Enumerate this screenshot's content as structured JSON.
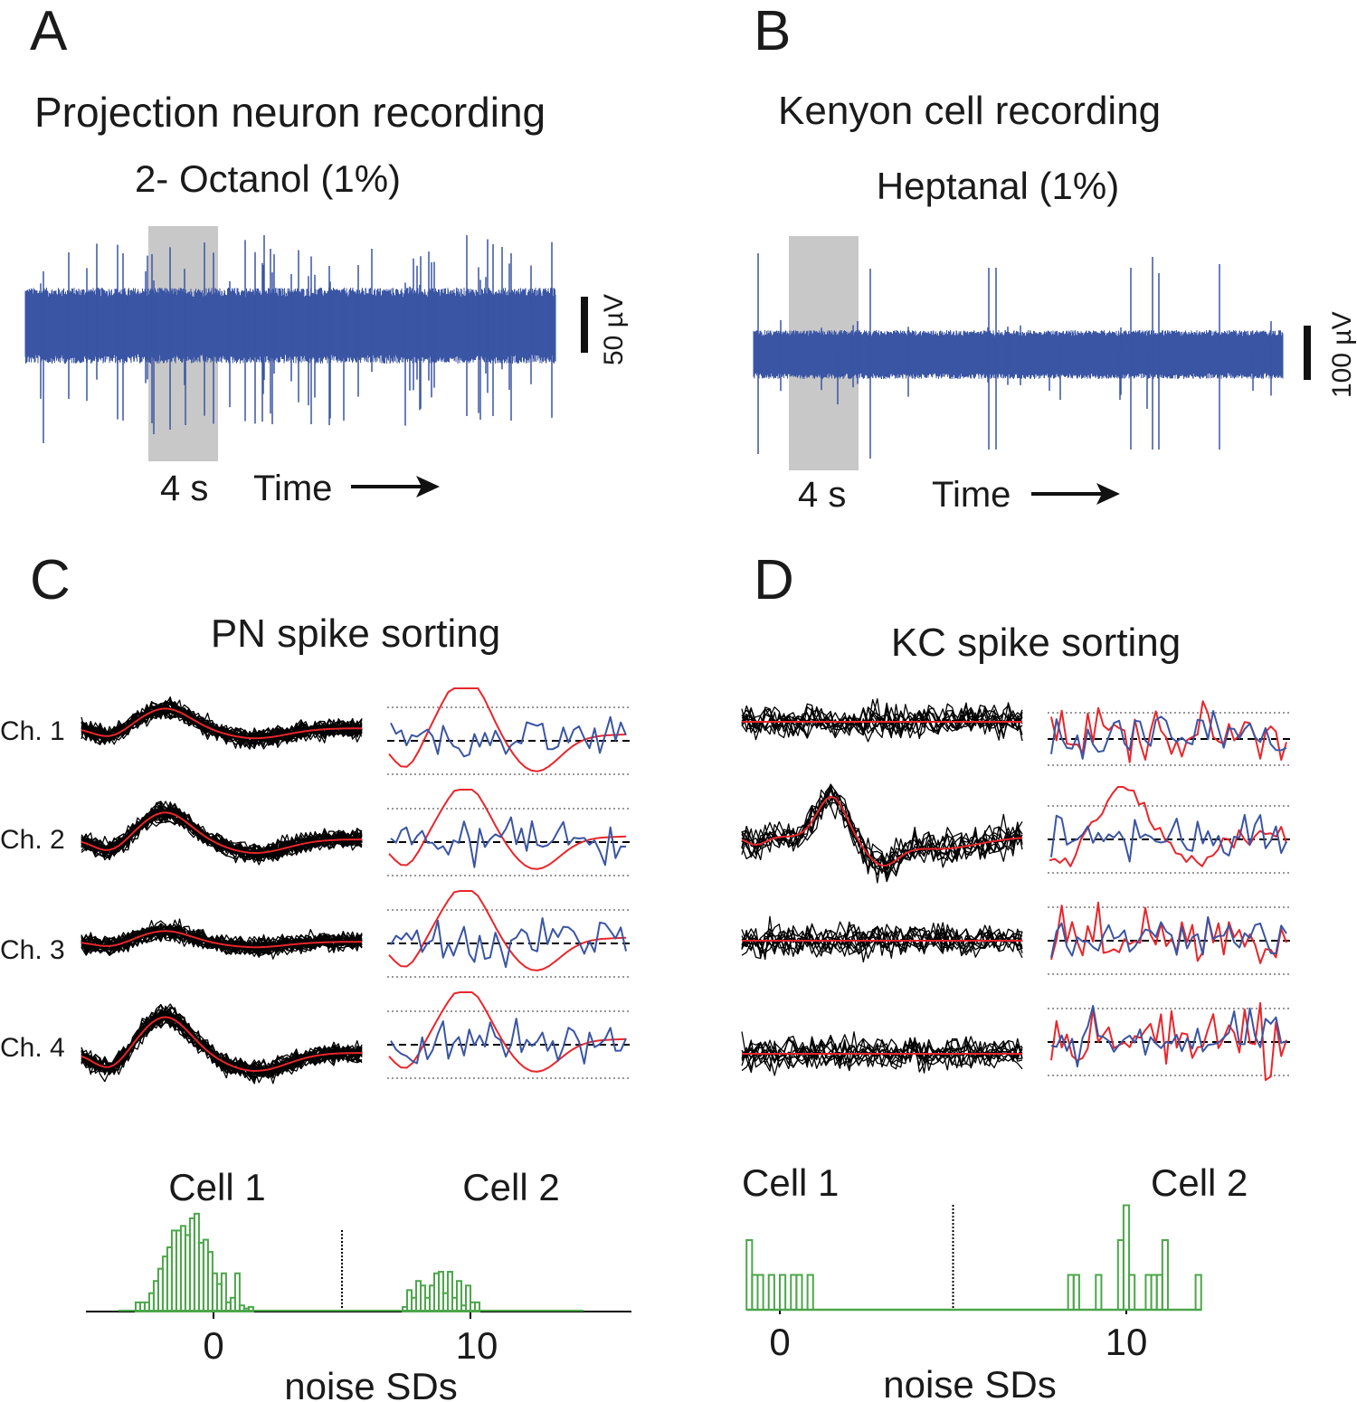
{
  "colors": {
    "trace": "#3a55a4",
    "mean": "#e8262b",
    "cell2": "#3a55a4",
    "hist": "#4ca64a",
    "stim": "#c8c8c8",
    "waveform": "#000000"
  },
  "panels": {
    "A": {
      "letter": "A",
      "title": "Projection neuron recording",
      "odor": "2- Octanol (1%)",
      "scale_label": "50 µV",
      "time_scale": "4 s",
      "time_label": "Time"
    },
    "B": {
      "letter": "B",
      "title": "Kenyon cell recording",
      "odor": "Heptanal (1%)",
      "scale_label": "100 µV",
      "time_scale": "4 s",
      "time_label": "Time"
    },
    "C": {
      "letter": "C",
      "title": "PN spike sorting",
      "channels": [
        "Ch. 1",
        "Ch. 2",
        "Ch. 3",
        "Ch. 4"
      ]
    },
    "D": {
      "letter": "D",
      "title": "KC spike sorting"
    }
  },
  "chart_data": [
    {
      "panel": "C",
      "type": "bar",
      "xlabel": "noise SDs",
      "xticks": [
        0,
        10
      ],
      "xtick_labels": [
        "0",
        "10"
      ],
      "xlim": [
        -5,
        16.2
      ],
      "threshold": 5,
      "cluster_labels": [
        "Cell 1",
        "Cell 2"
      ],
      "bin_width": 0.176,
      "clusters": [
        {
          "name": "Cell 1",
          "start": -3.03,
          "counts": [
            6,
            6,
            6,
            12,
            20,
            28,
            36,
            42,
            53,
            53,
            56,
            50,
            61,
            64,
            45,
            47,
            39,
            25,
            18,
            25,
            6,
            9,
            25,
            4,
            2,
            3
          ]
        },
        {
          "name": "Cell 2",
          "start": 7.36,
          "counts": [
            3,
            14,
            9,
            20,
            17,
            9,
            17,
            25,
            26,
            12,
            26,
            9,
            20,
            4,
            17,
            6,
            6
          ]
        }
      ]
    },
    {
      "panel": "D",
      "type": "bar",
      "xlabel": "noise SDs",
      "xticks": [
        0,
        10
      ],
      "xtick_labels": [
        "0",
        "10"
      ],
      "xlim": [
        -1,
        15
      ],
      "threshold": 5,
      "cluster_labels": [
        "Cell 1",
        "Cell 2"
      ],
      "bin_width": 0.16,
      "start": -0.96,
      "bins": [
        [
          0,
          2
        ],
        [
          1,
          1
        ],
        [
          2,
          1
        ],
        [
          4,
          1
        ],
        [
          6,
          1
        ],
        [
          8,
          1
        ],
        [
          9,
          1
        ],
        [
          11,
          1
        ],
        [
          58,
          1
        ],
        [
          59,
          1
        ],
        [
          63,
          1
        ],
        [
          67,
          2
        ],
        [
          68,
          3
        ],
        [
          69,
          1
        ],
        [
          72,
          1
        ],
        [
          73,
          1
        ],
        [
          74,
          1
        ],
        [
          75,
          2
        ],
        [
          81,
          1
        ]
      ]
    }
  ]
}
